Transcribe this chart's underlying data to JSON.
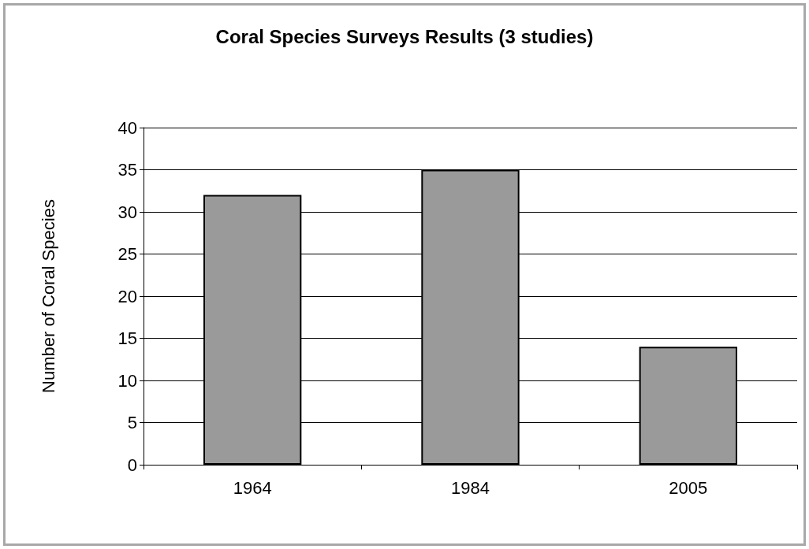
{
  "chart_data": {
    "type": "bar",
    "title": "Coral Species Surveys Results (3 studies)",
    "ylabel": "Number of Coral Species",
    "categories": [
      "1964",
      "1984",
      "2005"
    ],
    "values": [
      32,
      35,
      14
    ],
    "color": "#9a9a9a",
    "ylim": [
      0,
      40
    ],
    "yticks": [
      0,
      5,
      10,
      15,
      20,
      25,
      30,
      35,
      40
    ],
    "grid": "y"
  }
}
